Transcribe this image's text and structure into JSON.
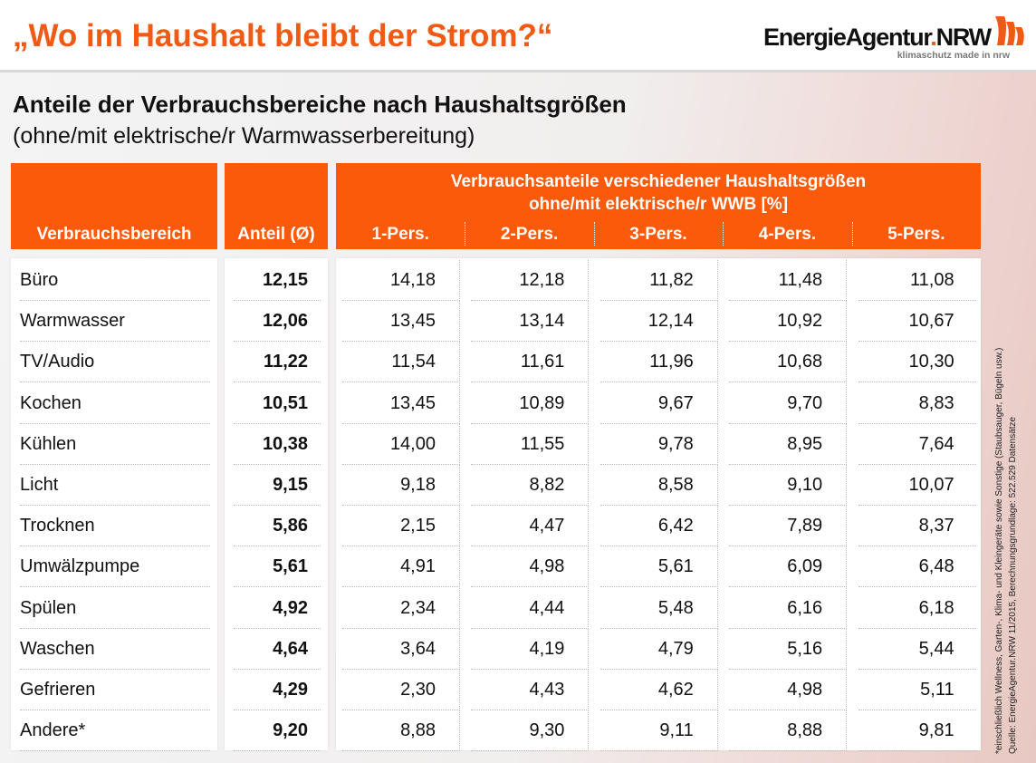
{
  "title": "„Wo im Haushalt bleibt der Strom?“",
  "logo": {
    "name_part1": "EnergieAgentur",
    "name_dot": ".",
    "name_part2": "NRW",
    "tagline": "klimaschutz made in nrw",
    "brand_color": "#f05a14"
  },
  "subtitle": "Anteile der Verbrauchsbereiche nach Haushaltsgrößen",
  "subtitle2": "(ohne/mit elektrische/r Warmwasserbereitung)",
  "table": {
    "header_color": "#fa5a0a",
    "col_area": "Verbrauchsbereich",
    "col_share": "Anteil (Ø)",
    "group_header_line1": "Verbrauchsanteile verschiedener Haushaltsgrößen",
    "group_header_line2": "ohne/mit elektrische/r WWB [%]",
    "household_cols": [
      "1-Pers.",
      "2-Pers.",
      "3-Pers.",
      "4-Pers.",
      "5-Pers."
    ],
    "rows": [
      {
        "area": "Büro",
        "share": "12,15",
        "values": [
          "14,18",
          "12,18",
          "11,82",
          "11,48",
          "11,08"
        ]
      },
      {
        "area": "Warmwasser",
        "share": "12,06",
        "values": [
          "13,45",
          "13,14",
          "12,14",
          "10,92",
          "10,67"
        ]
      },
      {
        "area": "TV/Audio",
        "share": "11,22",
        "values": [
          "11,54",
          "11,61",
          "11,96",
          "10,68",
          "10,30"
        ]
      },
      {
        "area": "Kochen",
        "share": "10,51",
        "values": [
          "13,45",
          "10,89",
          "9,67",
          "9,70",
          "8,83"
        ]
      },
      {
        "area": "Kühlen",
        "share": "10,38",
        "values": [
          "14,00",
          "11,55",
          "9,78",
          "8,95",
          "7,64"
        ]
      },
      {
        "area": "Licht",
        "share": "9,15",
        "values": [
          "9,18",
          "8,82",
          "8,58",
          "9,10",
          "10,07"
        ]
      },
      {
        "area": "Trocknen",
        "share": "5,86",
        "values": [
          "2,15",
          "4,47",
          "6,42",
          "7,89",
          "8,37"
        ]
      },
      {
        "area": "Umwälzpumpe",
        "share": "5,61",
        "values": [
          "4,91",
          "4,98",
          "5,61",
          "6,09",
          "6,48"
        ]
      },
      {
        "area": "Spülen",
        "share": "4,92",
        "values": [
          "2,34",
          "4,44",
          "5,48",
          "6,16",
          "6,18"
        ]
      },
      {
        "area": "Waschen",
        "share": "4,64",
        "values": [
          "3,64",
          "4,19",
          "4,79",
          "5,16",
          "5,44"
        ]
      },
      {
        "area": "Gefrieren",
        "share": "4,29",
        "values": [
          "2,30",
          "4,43",
          "4,62",
          "4,98",
          "5,11"
        ]
      },
      {
        "area": "Andere*",
        "share": "9,20",
        "values": [
          "8,88",
          "9,30",
          "9,11",
          "8,88",
          "9,81"
        ]
      }
    ]
  },
  "footnote": "*einschließlich Wellness, Garten-, Klima- und Kleingeräte sowie Sonstige (Staubsauger, Bügeln usw.)",
  "source": "Quelle: EnergieAgentur.NRW 11/2015, Berechnungsgrundlage: 522.529 Datensätze"
}
